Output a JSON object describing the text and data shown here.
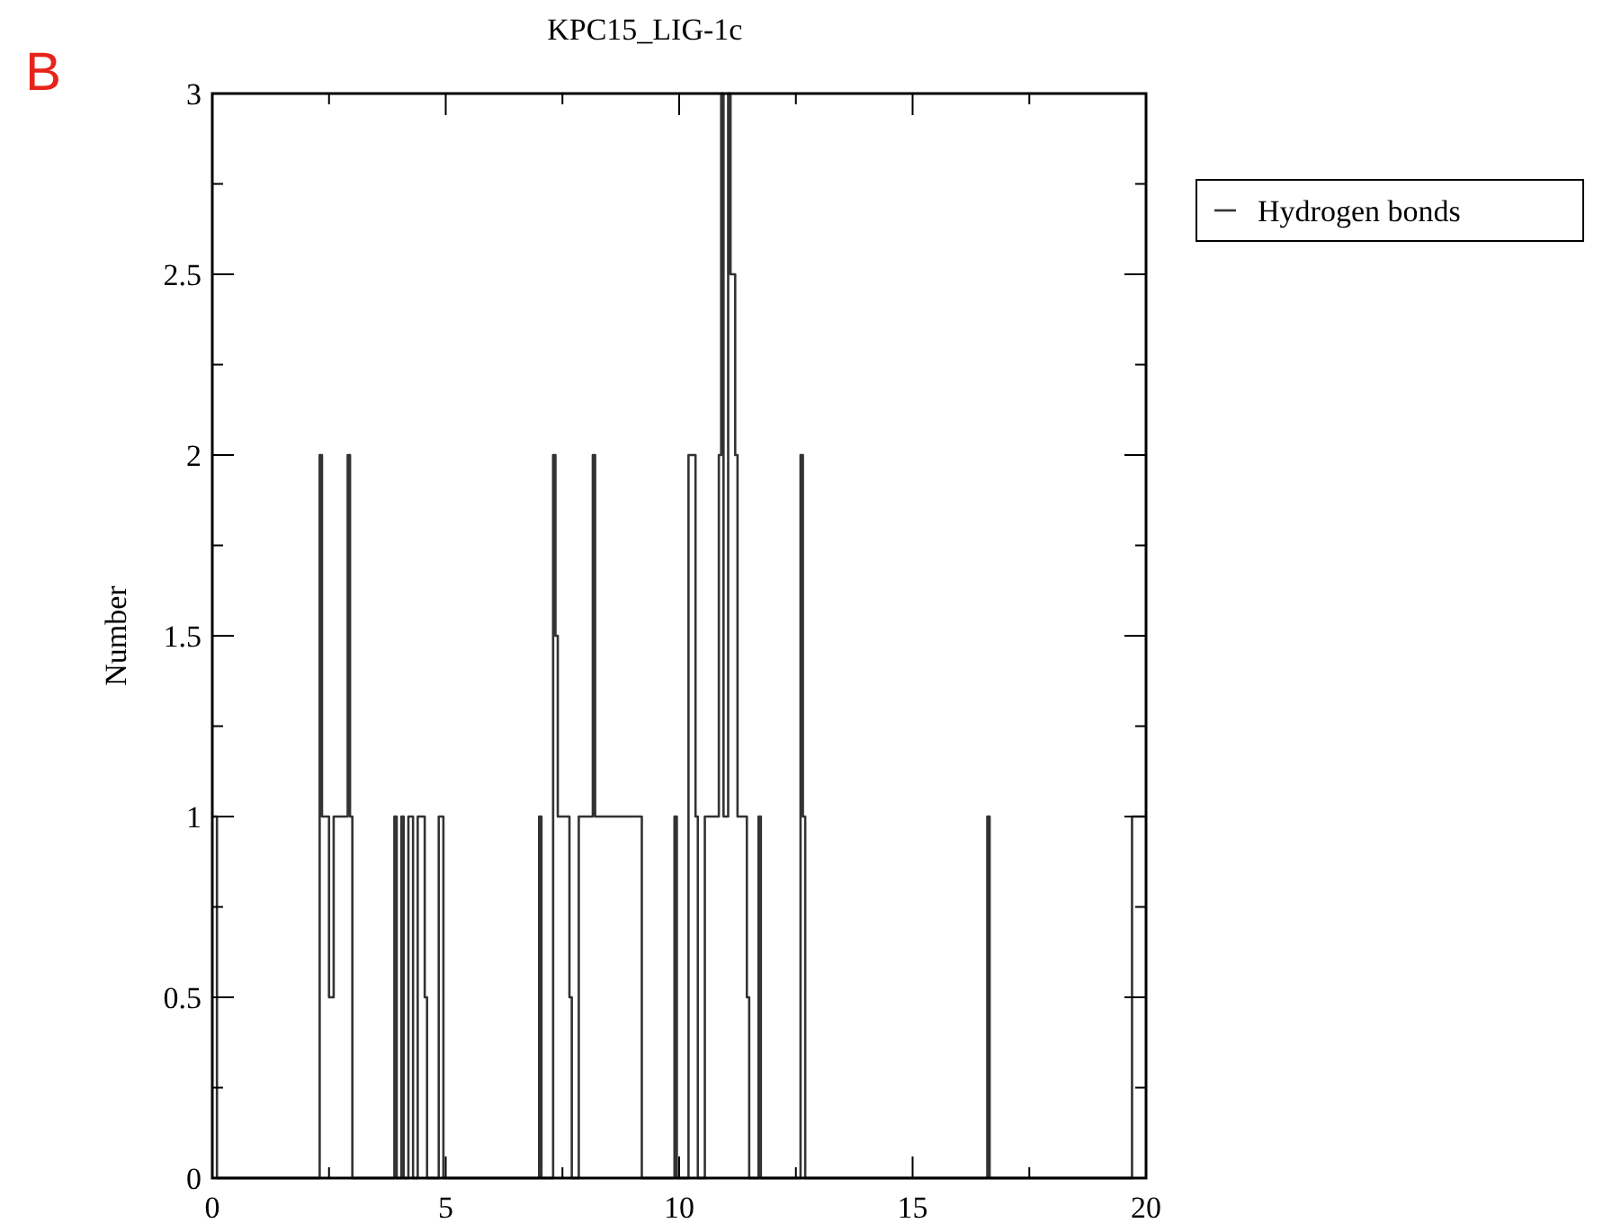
{
  "chart_data": {
    "type": "step",
    "title": "KPC15_LIG-1c",
    "ylabel": "Number",
    "annotations": [
      "B"
    ],
    "x": [
      0,
      0.1,
      2.3,
      2.35,
      2.5,
      2.6,
      2.9,
      2.95,
      3.0,
      3.9,
      3.95,
      4.05,
      4.1,
      4.2,
      4.3,
      4.4,
      4.55,
      4.6,
      4.85,
      4.95,
      5.0,
      7.0,
      7.05,
      7.3,
      7.35,
      7.4,
      7.65,
      7.7,
      7.85,
      8.15,
      8.2,
      9.2,
      9.9,
      9.95,
      10.2,
      10.35,
      10.4,
      10.55,
      10.85,
      10.9,
      10.95,
      11.05,
      11.1,
      11.2,
      11.25,
      11.45,
      11.5,
      11.7,
      11.75,
      12.6,
      12.65,
      12.7,
      16.6,
      16.65,
      19.7,
      20
    ],
    "series": [
      {
        "name": "Hydrogen bonds",
        "color": "#333333",
        "values": [
          1,
          0,
          2,
          1,
          0.5,
          1,
          2,
          1,
          0,
          1,
          0,
          1,
          0,
          1,
          0,
          1,
          0.5,
          0,
          1,
          0,
          0,
          1,
          0,
          2,
          1.5,
          1,
          0.5,
          0,
          1,
          2,
          1,
          0,
          1,
          0,
          2,
          1,
          0,
          1,
          2,
          3,
          1,
          3,
          2.5,
          2,
          1,
          0.5,
          0,
          1,
          0,
          2,
          1,
          0,
          1,
          0,
          1,
          1
        ]
      }
    ],
    "xlim": [
      0,
      20
    ],
    "xticks": [
      0,
      {
        "value": 2.5,
        "label": null
      },
      5,
      {
        "value": 7.5,
        "label": null
      },
      10,
      {
        "value": 12.5,
        "label": null
      },
      15,
      {
        "value": 17.5,
        "label": null
      },
      20
    ],
    "ylim": [
      0,
      3
    ],
    "yticks": [
      0,
      {
        "value": 0.25,
        "label": null
      },
      0.5,
      {
        "value": 0.75,
        "label": null
      },
      1,
      {
        "value": 1.25,
        "label": null
      },
      1.5,
      {
        "value": 1.75,
        "label": null
      },
      2,
      {
        "value": 2.25,
        "label": null
      },
      2.5,
      {
        "value": 2.75,
        "label": null
      },
      3
    ],
    "legend": "top right",
    "grid": false,
    "line_style": "solid",
    "marker": "none"
  }
}
